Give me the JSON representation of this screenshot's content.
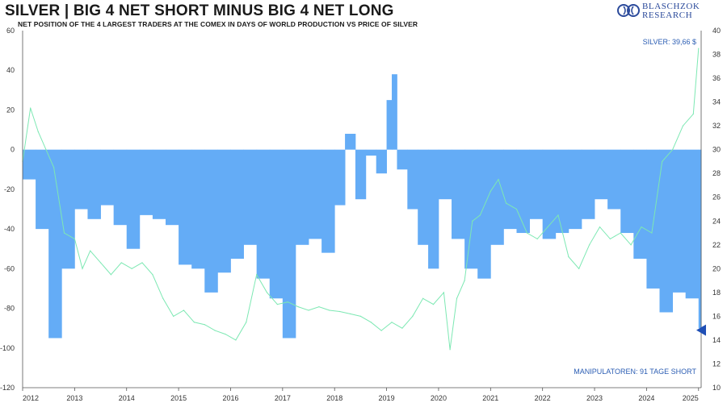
{
  "header": {
    "title": "SILVER | BIG 4 NET SHORT MINUS BIG 4 NET LONG",
    "subtitle": "NET POSITION OF THE 4 LARGEST TRADERS AT THE COMEX IN DAYS OF WORLD PRODUCTION VS PRICE OF SILVER"
  },
  "logo": {
    "line1": "BLASCHZOK",
    "line2": "RESEARCH"
  },
  "colors": {
    "bars": "#64acf6",
    "silver_line": "#7de8b3",
    "accent": "#2b5db3",
    "marker": "#1f4fb5"
  },
  "chart_data": {
    "type": "bar",
    "title": "SILVER | BIG 4 NET SHORT MINUS BIG 4 NET LONG",
    "subtitle": "NET POSITION OF THE 4 LARGEST TRADERS AT THE COMEX IN DAYS OF WORLD PRODUCTION VS PRICE OF SILVER",
    "x_ticks": [
      "2012",
      "2013",
      "2014",
      "2015",
      "2016",
      "2017",
      "2018",
      "2019",
      "2020",
      "2021",
      "2022",
      "2023",
      "2024",
      "2025"
    ],
    "xlim": [
      2012.0,
      2025.05
    ],
    "y_left": {
      "ticks": [
        60,
        40,
        20,
        0,
        -20,
        -40,
        -60,
        -80,
        -100,
        -120
      ],
      "ylim": [
        -120,
        60
      ]
    },
    "y_right": {
      "ticks": [
        40,
        38,
        36,
        34,
        32,
        30,
        28,
        26,
        24,
        22,
        20,
        18,
        16,
        14,
        12,
        10
      ],
      "ylim": [
        10,
        40
      ]
    },
    "grid": false,
    "series": [
      {
        "kind": "bars",
        "axis": "left",
        "x": [
          2012.0,
          2012.25,
          2012.5,
          2012.75,
          2013.0,
          2013.25,
          2013.5,
          2013.75,
          2014.0,
          2014.25,
          2014.5,
          2014.75,
          2015.0,
          2015.25,
          2015.5,
          2015.75,
          2016.0,
          2016.25,
          2016.5,
          2016.75,
          2017.0,
          2017.25,
          2017.5,
          2017.75,
          2018.0,
          2018.2,
          2018.4,
          2018.6,
          2018.8,
          2019.0,
          2019.1,
          2019.2,
          2019.4,
          2019.6,
          2019.8,
          2020.0,
          2020.25,
          2020.5,
          2020.75,
          2021.0,
          2021.25,
          2021.5,
          2021.75,
          2022.0,
          2022.25,
          2022.5,
          2022.75,
          2023.0,
          2023.25,
          2023.5,
          2023.75,
          2024.0,
          2024.25,
          2024.5,
          2024.75,
          2025.0
        ],
        "values": [
          -15,
          -40,
          -95,
          -60,
          -30,
          -35,
          -28,
          -38,
          -50,
          -33,
          -35,
          -38,
          -58,
          -60,
          -72,
          -62,
          -55,
          -48,
          -65,
          -75,
          -95,
          -48,
          -45,
          -52,
          -28,
          8,
          -25,
          -3,
          -12,
          25,
          38,
          -10,
          -30,
          -48,
          -60,
          -25,
          -45,
          -60,
          -65,
          -48,
          -40,
          -42,
          -35,
          -45,
          -42,
          -40,
          -35,
          -25,
          -30,
          -42,
          -55,
          -70,
          -82,
          -72,
          -75,
          -90
        ]
      },
      {
        "kind": "line",
        "name": "SILVER",
        "axis": "right",
        "x": [
          2012.0,
          2012.15,
          2012.3,
          2012.45,
          2012.6,
          2012.8,
          2013.0,
          2013.15,
          2013.3,
          2013.5,
          2013.7,
          2013.9,
          2014.1,
          2014.3,
          2014.5,
          2014.7,
          2014.9,
          2015.1,
          2015.3,
          2015.5,
          2015.7,
          2015.9,
          2016.1,
          2016.3,
          2016.5,
          2016.7,
          2016.9,
          2017.1,
          2017.3,
          2017.5,
          2017.7,
          2017.9,
          2018.1,
          2018.3,
          2018.5,
          2018.7,
          2018.9,
          2019.1,
          2019.3,
          2019.5,
          2019.7,
          2019.9,
          2020.1,
          2020.22,
          2020.35,
          2020.5,
          2020.65,
          2020.8,
          2021.0,
          2021.15,
          2021.3,
          2021.5,
          2021.7,
          2021.9,
          2022.1,
          2022.3,
          2022.5,
          2022.7,
          2022.9,
          2023.1,
          2023.3,
          2023.5,
          2023.7,
          2023.9,
          2024.1,
          2024.3,
          2024.5,
          2024.7,
          2024.9,
          2025.0
        ],
        "values": [
          29,
          33.5,
          31.5,
          30,
          28.5,
          23,
          22.5,
          20,
          21.5,
          20.5,
          19.5,
          20.5,
          20,
          20.5,
          19.5,
          17.5,
          16,
          16.5,
          15.5,
          15.3,
          14.8,
          14.5,
          14,
          15.5,
          19.5,
          18,
          17,
          17.2,
          16.8,
          16.5,
          16.8,
          16.5,
          16.4,
          16.2,
          16,
          15.5,
          14.8,
          15.5,
          15,
          16,
          17.5,
          17,
          18,
          13.2,
          17.5,
          19,
          24,
          24.5,
          26.5,
          27.5,
          25.5,
          25,
          23,
          22.5,
          23.5,
          24.5,
          21,
          20,
          22,
          23.5,
          22.5,
          23,
          22,
          23.5,
          23,
          29,
          30,
          32,
          33,
          38.5
        ]
      }
    ],
    "annotations": {
      "silver_price": "SILVER: 39,66 $",
      "manipulators": "MANIPULATOREN: 91 TAGE SHORT"
    }
  }
}
